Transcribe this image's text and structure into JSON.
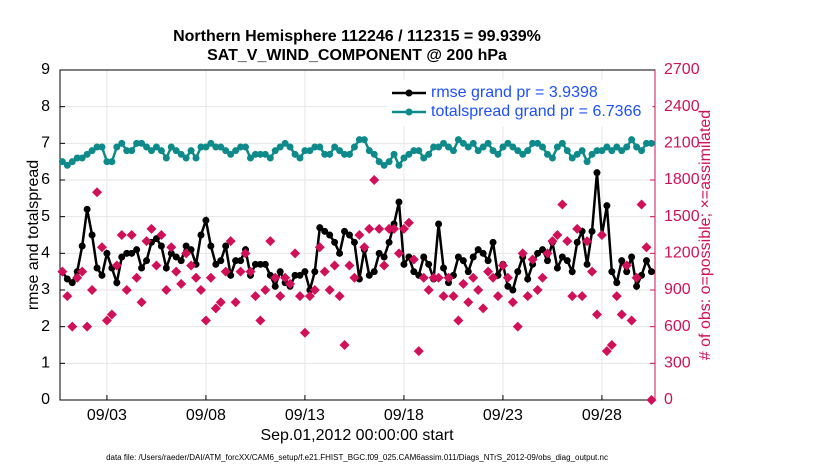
{
  "chart_data": {
    "type": "line",
    "title": "Northern Hemisphere 112246 / 112315 = 99.939%",
    "subtitle": "SAT_V_WIND_COMPONENT @ 200 hPa",
    "xlabel": "Sep.01,2012 00:00:00 start",
    "ylabel": "rmse and totalspread",
    "y2label": "# of obs: o=possible; ×=assimilated",
    "footnote": "data file: /Users/raeder/DAI/ATM_forcXX/CAM6_setup/f.e21.FHIST_BGC.f09_025.CAM6assim.011/Diags_NTrS_2012-09/obs_diag_output.nc",
    "xlim": [
      0.63,
      30.68
    ],
    "xticks": [
      {
        "value": 3,
        "label": "09/03"
      },
      {
        "value": 8,
        "label": "09/08"
      },
      {
        "value": 13,
        "label": "09/13"
      },
      {
        "value": 18,
        "label": "09/18"
      },
      {
        "value": 23,
        "label": "09/23"
      },
      {
        "value": 28,
        "label": "09/28"
      }
    ],
    "ylim": [
      0,
      9
    ],
    "yticks": [
      0,
      1,
      2,
      3,
      4,
      5,
      6,
      7,
      8,
      9
    ],
    "y2lim": [
      0,
      2700
    ],
    "y2ticks": [
      0,
      300,
      600,
      900,
      1200,
      1500,
      1800,
      2100,
      2400,
      2700
    ],
    "grid": true,
    "legend": "upper right",
    "x": [
      0.75,
      1,
      1.25,
      1.5,
      1.75,
      2,
      2.25,
      2.5,
      2.75,
      3,
      3.25,
      3.5,
      3.75,
      4,
      4.25,
      4.5,
      4.75,
      5,
      5.25,
      5.5,
      5.75,
      6,
      6.25,
      6.5,
      6.75,
      7,
      7.25,
      7.5,
      7.75,
      8,
      8.25,
      8.5,
      8.75,
      9,
      9.25,
      9.5,
      9.75,
      10,
      10.25,
      10.5,
      10.75,
      11,
      11.25,
      11.5,
      11.75,
      12,
      12.25,
      12.5,
      12.75,
      13,
      13.25,
      13.5,
      13.75,
      14,
      14.25,
      14.5,
      14.75,
      15,
      15.25,
      15.5,
      15.75,
      16,
      16.25,
      16.5,
      16.75,
      17,
      17.25,
      17.5,
      17.75,
      18,
      18.25,
      18.5,
      18.75,
      19,
      19.25,
      19.5,
      19.75,
      20,
      20.25,
      20.5,
      20.75,
      21,
      21.25,
      21.5,
      21.75,
      22,
      22.25,
      22.5,
      22.75,
      23,
      23.25,
      23.5,
      23.75,
      24,
      24.25,
      24.5,
      24.75,
      25,
      25.25,
      25.5,
      25.75,
      26,
      26.25,
      26.5,
      26.75,
      27,
      27.25,
      27.5,
      27.75,
      28,
      28.25,
      28.5,
      28.75,
      29,
      29.25,
      29.5,
      29.75,
      30,
      30.25,
      30.5
    ],
    "series": [
      {
        "name": "rmse grand pr = 3.9398",
        "color": "#000000",
        "values": [
          3.5,
          3.3,
          3.2,
          3.5,
          4.2,
          5.2,
          4.5,
          3.6,
          3.4,
          4.0,
          3.6,
          3.2,
          3.9,
          4.0,
          4.0,
          4.1,
          3.6,
          3.8,
          4.3,
          4.4,
          4.2,
          3.6,
          4.0,
          3.9,
          3.8,
          4.2,
          4.1,
          3.7,
          4.5,
          4.9,
          4.2,
          3.7,
          3.8,
          4.2,
          3.4,
          3.8,
          3.8,
          4.1,
          3.4,
          3.7,
          3.7,
          3.7,
          3.4,
          3.1,
          3.5,
          3.2,
          3.1,
          3.4,
          3.4,
          3.5,
          3.0,
          3.5,
          4.7,
          4.6,
          4.5,
          4.3,
          4.0,
          4.6,
          4.5,
          4.3,
          3.3,
          4.1,
          3.4,
          3.5,
          4.0,
          3.9,
          4.3,
          4.8,
          5.4,
          3.7,
          3.9,
          3.5,
          3.4,
          3.9,
          3.7,
          3.3,
          4.8,
          3.6,
          3.2,
          3.4,
          3.9,
          3.8,
          3.5,
          3.9,
          4.1,
          4.0,
          3.8,
          4.3,
          3.4,
          3.7,
          3.1,
          3.0,
          3.5,
          3.9,
          3.3,
          3.7,
          4.0,
          4.1,
          3.8,
          4.3,
          3.6,
          3.9,
          3.8,
          3.5,
          4.3,
          4.6,
          3.7,
          4.6,
          6.2,
          4.5,
          5.3,
          3.5,
          3.2,
          3.8,
          3.5,
          3.9,
          3.1,
          3.4,
          3.8,
          3.5
        ]
      },
      {
        "name": "totalspread grand pr = 6.7366",
        "color": "#0f8a8a",
        "values": [
          6.5,
          6.4,
          6.5,
          6.6,
          6.6,
          6.7,
          6.8,
          6.9,
          6.9,
          6.5,
          6.5,
          6.9,
          7.0,
          6.8,
          6.8,
          7.0,
          7.0,
          6.9,
          6.8,
          6.9,
          6.8,
          6.6,
          6.9,
          6.8,
          6.7,
          6.6,
          6.8,
          6.6,
          6.9,
          6.9,
          7.0,
          6.9,
          6.9,
          6.8,
          6.7,
          6.8,
          6.9,
          6.9,
          6.6,
          6.7,
          6.7,
          6.7,
          6.6,
          6.8,
          6.9,
          7.0,
          6.9,
          6.7,
          6.6,
          6.8,
          6.8,
          6.9,
          6.9,
          6.7,
          6.7,
          6.9,
          6.8,
          6.7,
          6.7,
          6.9,
          7.1,
          7.1,
          6.8,
          6.7,
          6.5,
          6.4,
          6.5,
          6.7,
          6.4,
          6.6,
          6.7,
          6.8,
          6.8,
          6.6,
          6.7,
          6.9,
          6.9,
          7.0,
          6.9,
          6.8,
          7.1,
          7.0,
          6.9,
          7.0,
          6.8,
          6.9,
          7.0,
          6.8,
          6.7,
          6.9,
          7.0,
          6.9,
          6.8,
          6.7,
          6.8,
          7.0,
          7.0,
          6.9,
          6.7,
          6.6,
          6.9,
          7.0,
          6.8,
          6.6,
          6.7,
          6.8,
          6.5,
          6.7,
          6.8,
          6.8,
          6.9,
          6.8,
          6.9,
          6.8,
          6.9,
          7.1,
          6.9,
          6.8,
          7.0,
          7.0
        ]
      },
      {
        "axis": "y2",
        "color": "#d0115a",
        "values": [
          1050,
          850,
          600,
          1000,
          1050,
          600,
          900,
          1700,
          1250,
          650,
          700,
          1100,
          1350,
          900,
          1350,
          1000,
          800,
          1300,
          1400,
          1100,
          1350,
          900,
          1250,
          1050,
          950,
          1200,
          1100,
          1000,
          900,
          650,
          1000,
          750,
          800,
          1050,
          1300,
          800,
          1050,
          1200,
          1050,
          850,
          650,
          900,
          1300,
          1000,
          850,
          1000,
          950,
          1200,
          850,
          550,
          850,
          900,
          1250,
          1050,
          900,
          1100,
          850,
          450,
          1100,
          1000,
          1350,
          1250,
          1400,
          1800,
          1400,
          1100,
          1400,
          1400,
          1200,
          1400,
          1450,
          1150,
          400,
          1000,
          900,
          1000,
          1000,
          850,
          1000,
          850,
          650,
          950,
          800,
          1000,
          900,
          750,
          1050,
          1000,
          850,
          1100,
          1000,
          800,
          600,
          1200,
          850,
          1150,
          900,
          1000,
          1200,
          1300,
          1350,
          1600,
          1300,
          850,
          1400,
          850,
          1300,
          1050,
          700,
          1350,
          400,
          450,
          850,
          700,
          1100,
          650,
          1000,
          1600,
          1250,
          0
        ]
      }
    ]
  }
}
